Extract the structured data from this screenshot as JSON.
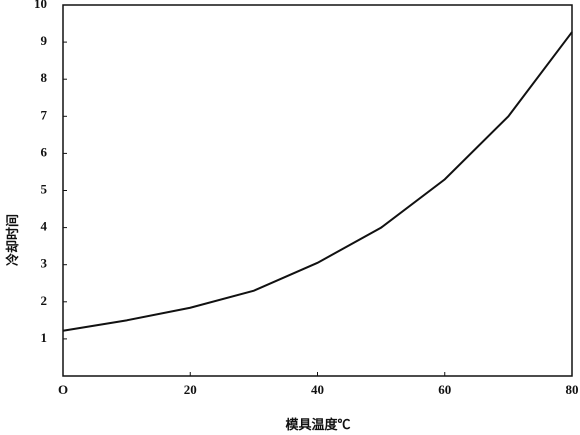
{
  "chart_data": {
    "type": "line",
    "x_label": "模具温度℃",
    "y_label": "冷却时间",
    "x": [
      0,
      10,
      20,
      30,
      40,
      50,
      60,
      70,
      80
    ],
    "series": [
      {
        "color": "#111111",
        "values": [
          1.22,
          1.5,
          1.84,
          2.3,
          3.05,
          4.0,
          5.3,
          7.0,
          9.27
        ]
      }
    ],
    "xlim": [
      0,
      80
    ],
    "ylim": [
      0,
      10
    ],
    "xticks": [
      {
        "value": 0,
        "label": "O"
      },
      20,
      40,
      60,
      80
    ],
    "yticks": [
      1,
      2,
      3,
      4,
      5,
      6,
      7,
      8,
      9,
      10
    ],
    "grid": false
  }
}
